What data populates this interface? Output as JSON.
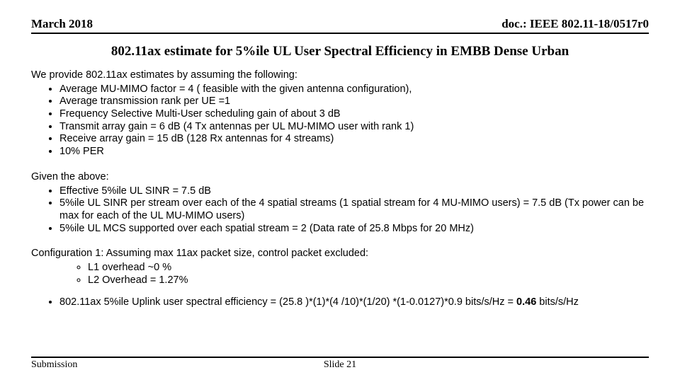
{
  "header": {
    "date": "March 2018",
    "doc": "doc.: IEEE 802.11-18/0517r0"
  },
  "title": "802.11ax estimate for 5%ile UL User Spectral Efficiency in EMBB Dense Urban",
  "intro1": "We provide 802.11ax estimates by  assuming the following:",
  "assumptions": [
    "Average MU-MIMO factor = 4 ( feasible with the given antenna configuration),",
    "Average transmission rank per UE =1",
    "Frequency Selective Multi-User scheduling gain of about 3 dB",
    "Transmit array gain = 6 dB (4 Tx antennas per UL MU-MIMO user with rank 1)",
    "Receive array gain = 15 dB (128 Rx antennas for 4 streams)",
    "10% PER"
  ],
  "given_intro": "Given the above:",
  "given": [
    "Effective 5%ile UL SINR = 7.5 dB",
    "5%ile UL SINR per stream over each of the 4 spatial streams (1 spatial stream for 4 MU-MIMO users) = 7.5 dB (Tx power can be max for each of the UL MU-MIMO users)",
    "5%ile UL MCS supported over each spatial stream = 2  (Data rate of 25.8 Mbps for 20 MHz)"
  ],
  "config_intro": "Configuration 1: Assuming max 11ax  packet size, control packet excluded:",
  "config_sub": [
    "L1 overhead ~0 %",
    "L2 Overhead = 1.27%"
  ],
  "final_prefix": "802.11ax 5%ile Uplink user spectral efficiency = (25.8 )*(1)*(4 /10)*(1/20) *(1-0.0127)*0.9 bits/s/Hz = ",
  "final_bold": "0.46",
  "final_suffix": " bits/s/Hz",
  "footer": {
    "left": "Submission",
    "center": "Slide 21"
  }
}
